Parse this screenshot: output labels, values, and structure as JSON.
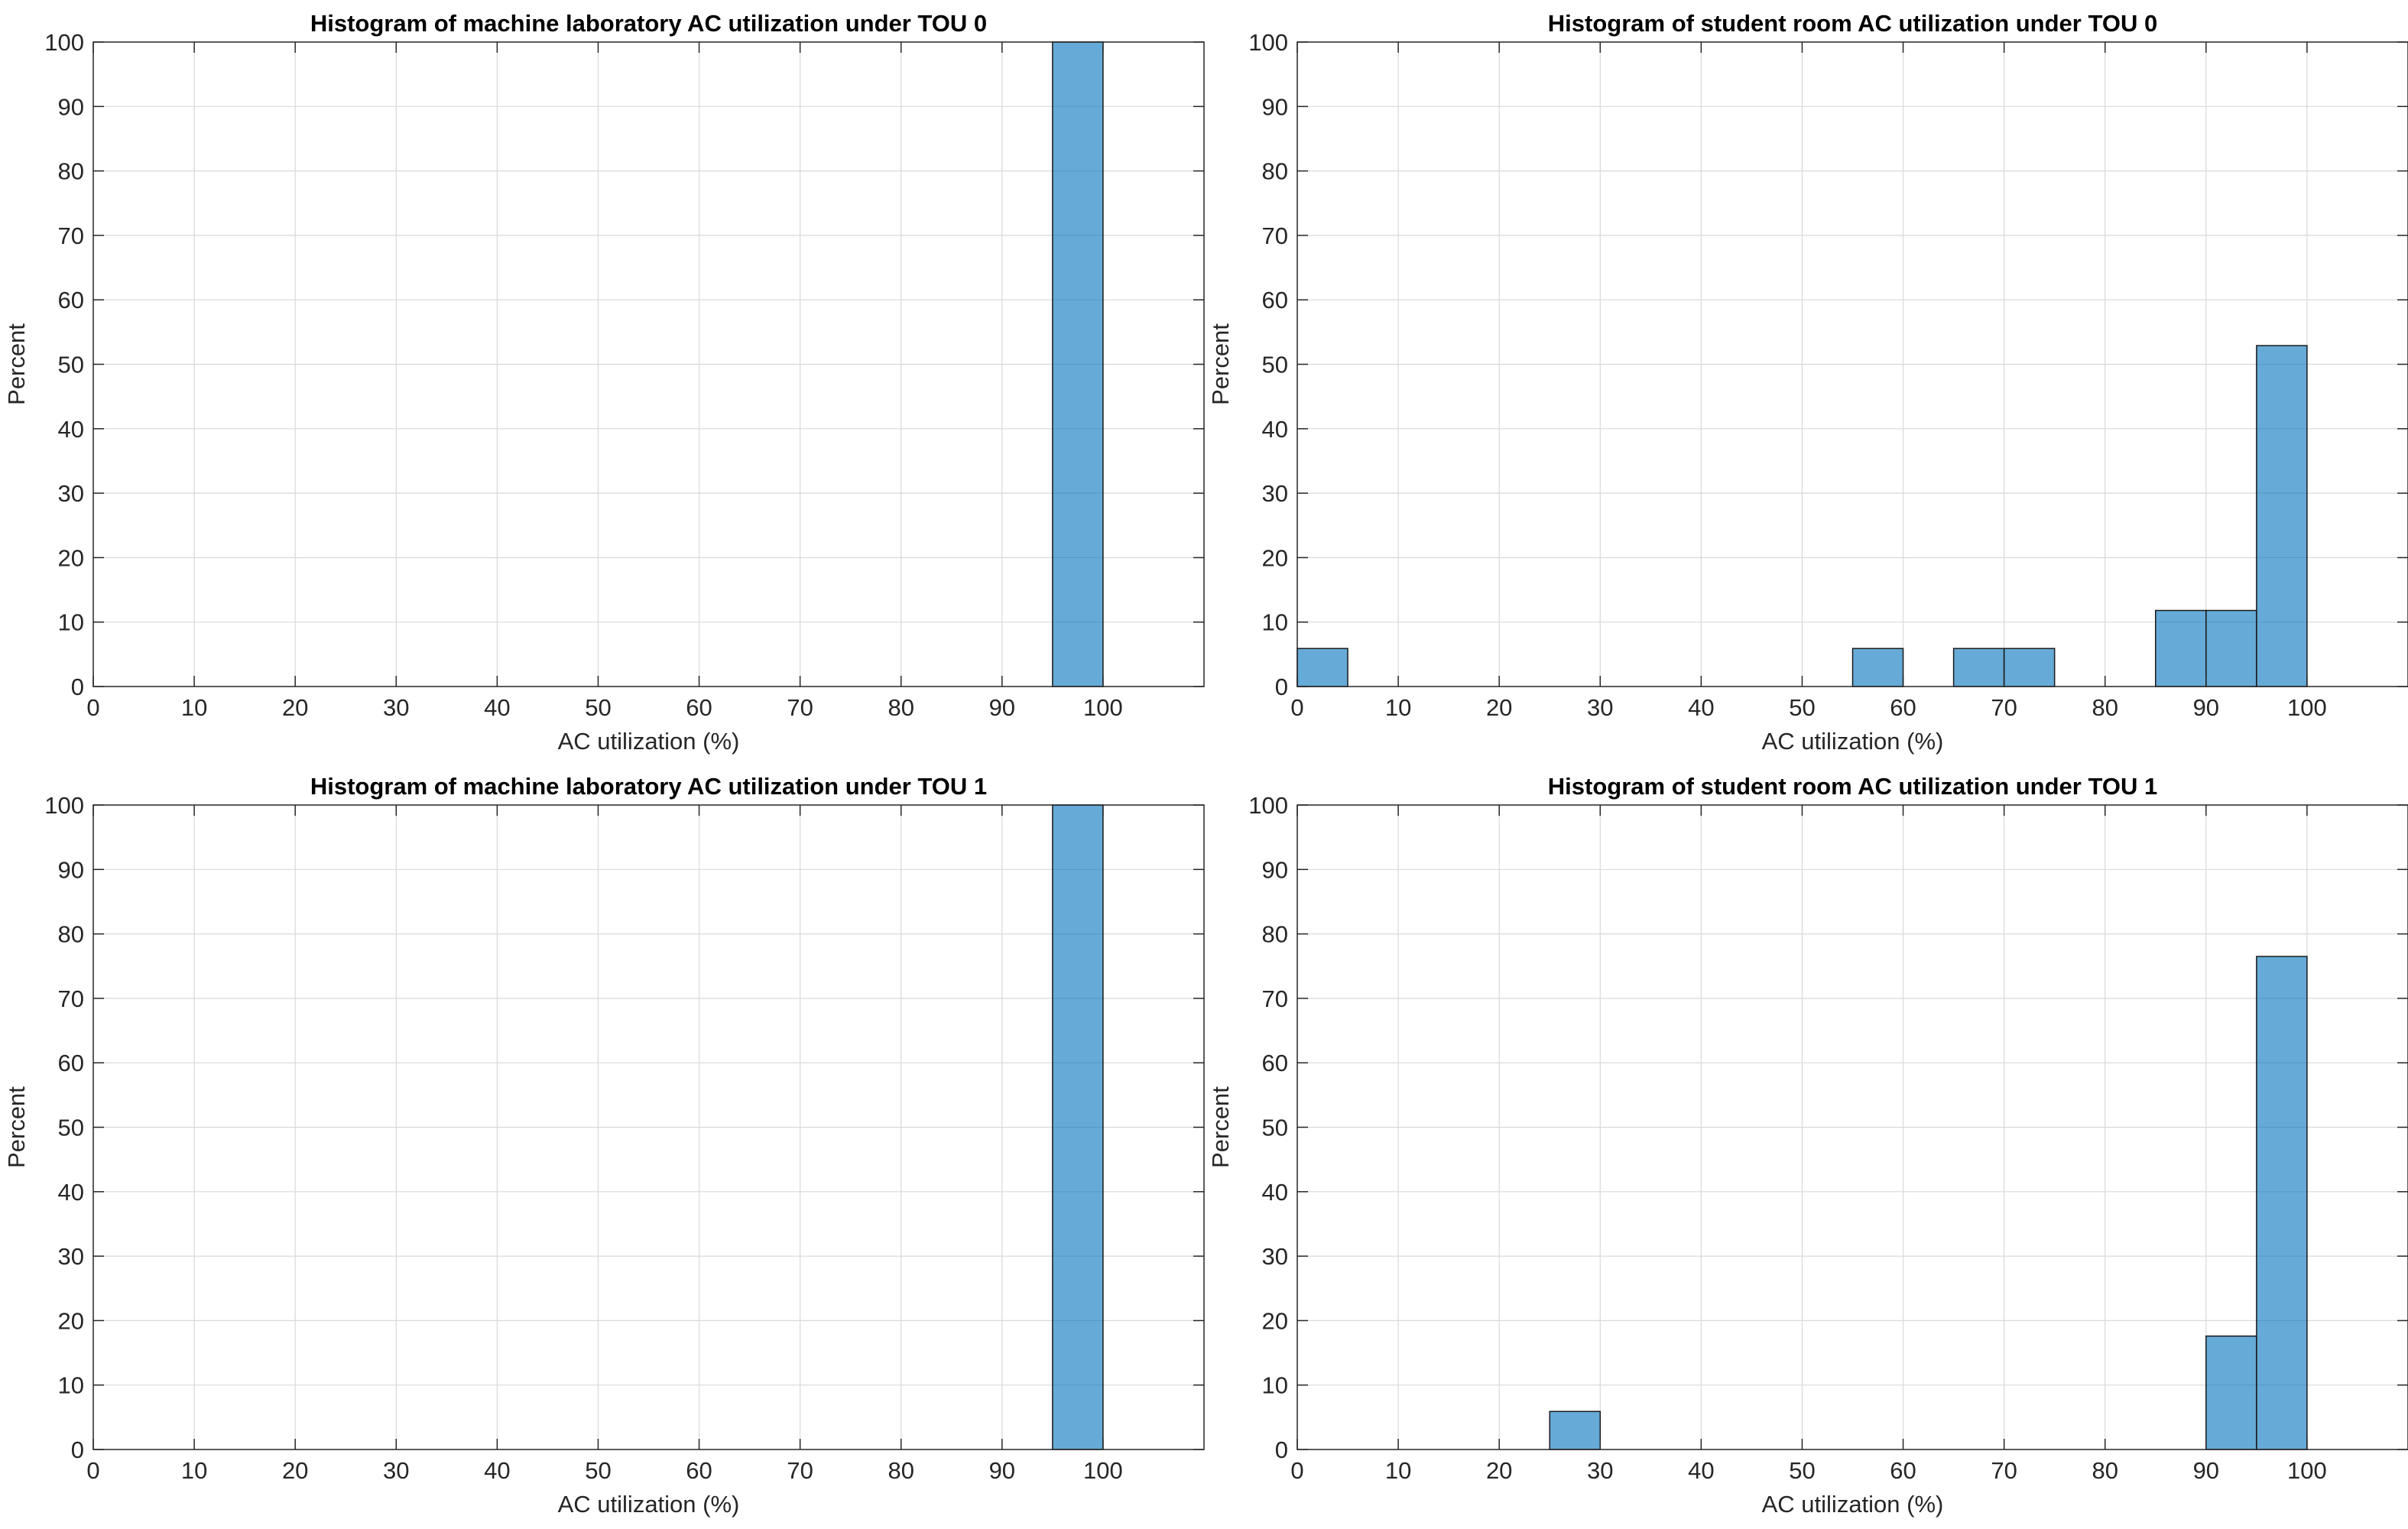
{
  "colors": {
    "bar_fill": "#0072BD",
    "bar_stroke": "#1a1a1a",
    "grid": "#d9d9d9",
    "axis": "#262626"
  },
  "chart_data": [
    {
      "type": "bar",
      "title": "Histogram of machine laboratory AC utilization under TOU 0",
      "xlabel": "AC utilization (%)",
      "ylabel": "Percent",
      "xlim": [
        0,
        110
      ],
      "ylim": [
        0,
        100
      ],
      "xticks": [
        "0",
        "10",
        "20",
        "30",
        "40",
        "50",
        "60",
        "70",
        "80",
        "90",
        "100"
      ],
      "yticks": [
        "0",
        "10",
        "20",
        "30",
        "40",
        "50",
        "60",
        "70",
        "80",
        "90",
        "100"
      ],
      "grid": true,
      "bins": [
        {
          "start": 95,
          "end": 100,
          "value": 100
        }
      ]
    },
    {
      "type": "bar",
      "title": "Histogram of student room AC utilization under TOU 0",
      "xlabel": "AC utilization (%)",
      "ylabel": "Percent",
      "xlim": [
        0,
        110
      ],
      "ylim": [
        0,
        100
      ],
      "xticks": [
        "0",
        "10",
        "20",
        "30",
        "40",
        "50",
        "60",
        "70",
        "80",
        "90",
        "100"
      ],
      "yticks": [
        "0",
        "10",
        "20",
        "30",
        "40",
        "50",
        "60",
        "70",
        "80",
        "90",
        "100"
      ],
      "grid": true,
      "bins": [
        {
          "start": 0,
          "end": 5,
          "value": 5.9
        },
        {
          "start": 55,
          "end": 60,
          "value": 5.9
        },
        {
          "start": 65,
          "end": 70,
          "value": 5.9
        },
        {
          "start": 70,
          "end": 75,
          "value": 5.9
        },
        {
          "start": 85,
          "end": 90,
          "value": 11.8
        },
        {
          "start": 90,
          "end": 95,
          "value": 11.8
        },
        {
          "start": 95,
          "end": 100,
          "value": 52.9
        }
      ]
    },
    {
      "type": "bar",
      "title": "Histogram of machine laboratory AC utilization under TOU 1",
      "xlabel": "AC utilization (%)",
      "ylabel": "Percent",
      "xlim": [
        0,
        110
      ],
      "ylim": [
        0,
        100
      ],
      "xticks": [
        "0",
        "10",
        "20",
        "30",
        "40",
        "50",
        "60",
        "70",
        "80",
        "90",
        "100"
      ],
      "yticks": [
        "0",
        "10",
        "20",
        "30",
        "40",
        "50",
        "60",
        "70",
        "80",
        "90",
        "100"
      ],
      "grid": true,
      "bins": [
        {
          "start": 95,
          "end": 100,
          "value": 100
        }
      ]
    },
    {
      "type": "bar",
      "title": "Histogram of student room AC utilization under TOU 1",
      "xlabel": "AC utilization (%)",
      "ylabel": "Percent",
      "xlim": [
        0,
        110
      ],
      "ylim": [
        0,
        100
      ],
      "xticks": [
        "0",
        "10",
        "20",
        "30",
        "40",
        "50",
        "60",
        "70",
        "80",
        "90",
        "100"
      ],
      "yticks": [
        "0",
        "10",
        "20",
        "30",
        "40",
        "50",
        "60",
        "70",
        "80",
        "90",
        "100"
      ],
      "grid": true,
      "bins": [
        {
          "start": 25,
          "end": 30,
          "value": 5.9
        },
        {
          "start": 90,
          "end": 95,
          "value": 17.6
        },
        {
          "start": 95,
          "end": 100,
          "value": 76.5
        }
      ]
    }
  ]
}
